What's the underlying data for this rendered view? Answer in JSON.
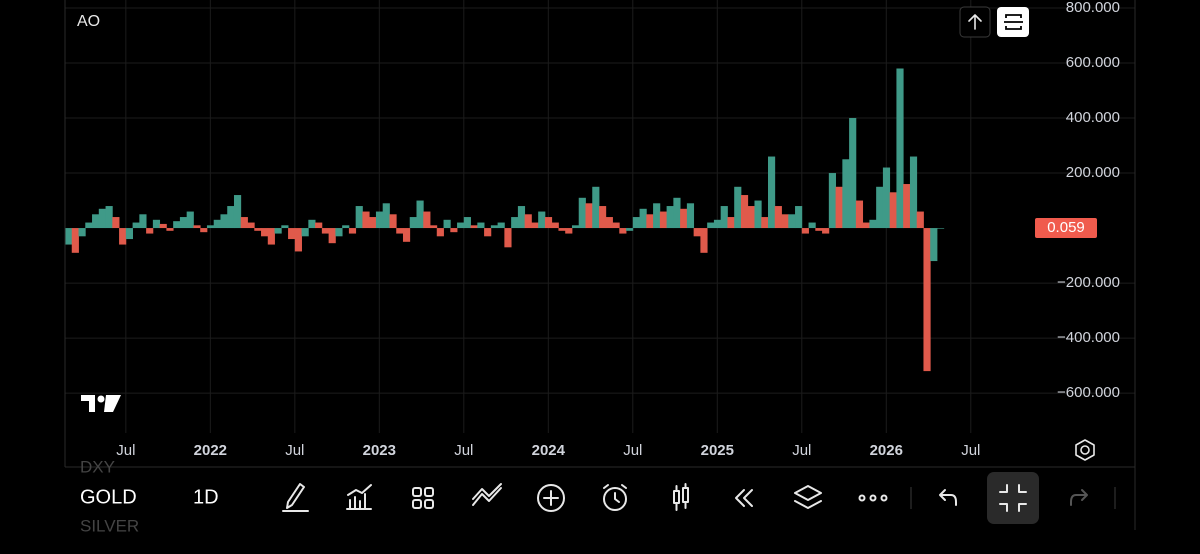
{
  "chart_data": {
    "type": "histogram-oscillator",
    "title": "AO",
    "x": [
      2021.16,
      2021.2,
      2021.24,
      2021.28,
      2021.32,
      2021.36,
      2021.4,
      2021.44,
      2021.48,
      2021.52,
      2021.56,
      2021.6,
      2021.64,
      2021.68,
      2021.72,
      2021.76,
      2021.8,
      2021.84,
      2021.88,
      2021.92,
      2021.96,
      2022,
      2022.04,
      2022.08,
      2022.12,
      2022.16,
      2022.2,
      2022.24,
      2022.28,
      2022.32,
      2022.36,
      2022.4,
      2022.44,
      2022.48,
      2022.52,
      2022.56,
      2022.6,
      2022.64,
      2022.68,
      2022.72,
      2022.76,
      2022.8,
      2022.84,
      2022.88,
      2022.92,
      2022.96,
      2023,
      2023.04,
      2023.08,
      2023.12,
      2023.16,
      2023.2,
      2023.24,
      2023.28,
      2023.32,
      2023.36,
      2023.4,
      2023.44,
      2023.48,
      2023.52,
      2023.56,
      2023.6,
      2023.64,
      2023.68,
      2023.72,
      2023.76,
      2023.8,
      2023.84,
      2023.88,
      2023.92,
      2023.96,
      2024,
      2024.04,
      2024.08,
      2024.12,
      2024.16,
      2024.2,
      2024.24,
      2024.28,
      2024.32,
      2024.36,
      2024.4,
      2024.44,
      2024.48,
      2024.52,
      2024.56,
      2024.6,
      2024.64,
      2024.68,
      2024.72,
      2024.76,
      2024.8,
      2024.84,
      2024.88,
      2024.92,
      2024.96,
      2025,
      2025.04,
      2025.08,
      2025.12,
      2025.16,
      2025.2,
      2025.24,
      2025.28,
      2025.32,
      2025.36,
      2025.4,
      2025.44,
      2025.48,
      2025.52,
      2025.56,
      2025.6,
      2025.64,
      2025.68,
      2025.72,
      2025.76,
      2025.8,
      2025.84,
      2025.88,
      2025.92,
      2025.96,
      2026,
      2026.04,
      2026.08,
      2026.12,
      2026.16,
      2026.2,
      2026.24,
      2026.28,
      2026.32
    ],
    "values": [
      -60,
      -90,
      -30,
      20,
      50,
      70,
      80,
      40,
      -60,
      -40,
      20,
      50,
      -20,
      30,
      15,
      -10,
      25,
      40,
      60,
      10,
      -15,
      10,
      30,
      50,
      80,
      120,
      40,
      20,
      -10,
      -30,
      -60,
      -20,
      10,
      -40,
      -85,
      -30,
      30,
      20,
      -20,
      -55,
      -30,
      10,
      -20,
      80,
      60,
      40,
      60,
      90,
      50,
      -20,
      -50,
      40,
      100,
      60,
      10,
      -30,
      30,
      -15,
      20,
      40,
      10,
      20,
      -30,
      10,
      20,
      -70,
      40,
      80,
      50,
      20,
      60,
      40,
      20,
      -10,
      -20,
      10,
      110,
      90,
      150,
      80,
      40,
      20,
      -20,
      -10,
      40,
      70,
      50,
      90,
      60,
      80,
      110,
      70,
      90,
      -30,
      -90,
      20,
      30,
      80,
      40,
      150,
      120,
      80,
      100,
      40,
      260,
      80,
      50,
      50,
      80,
      -20,
      20,
      -10,
      -20,
      200,
      150,
      250,
      400,
      100,
      20,
      30,
      150,
      220,
      130,
      580,
      160,
      260,
      60,
      -520,
      -120,
      0.059
    ],
    "rising_color": "#3f9a88",
    "falling_color": "#e05a4b",
    "xlim": [
      2021.14,
      2026.88
    ],
    "xticks": [
      {
        "value": 2021.5,
        "label": "Jul"
      },
      2022,
      {
        "value": 2022.5,
        "label": "Jul"
      },
      2023,
      {
        "value": 2023.5,
        "label": "Jul"
      },
      2024,
      {
        "value": 2024.5,
        "label": "Jul"
      },
      2025,
      {
        "value": 2025.5,
        "label": "Jul"
      },
      2026,
      {
        "value": 2026.5,
        "label": "Jul"
      }
    ],
    "ylim": [
      -745,
      829
    ],
    "yticks": [
      {
        "value": 800,
        "label": "800.000"
      },
      {
        "value": 600,
        "label": "600.000"
      },
      {
        "value": 400,
        "label": "400.000"
      },
      {
        "value": 200,
        "label": "200.000"
      },
      {
        "value": -200,
        "label": "−200.000"
      },
      {
        "value": -400,
        "label": "−400.000"
      },
      {
        "value": -600,
        "label": "−600.000"
      }
    ],
    "grid": true,
    "last_value_color": "#f05b4d"
  },
  "ui": {
    "symbol": "GOLD",
    "interval": "1D",
    "symbol_above": "DXY",
    "symbol_below": "SILVER"
  }
}
